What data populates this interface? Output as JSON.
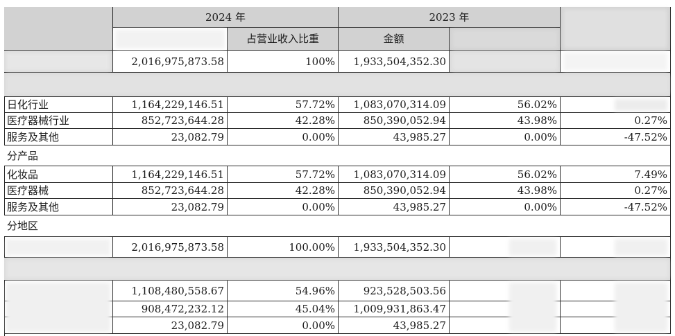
{
  "header": {
    "year_2024": "2024 年",
    "year_2023": "2023 年",
    "col_2024_amount": "",
    "col_2024_ratio": "占营业收入比重",
    "col_2023_amount": "金额",
    "col_2023_ratio": "",
    "col_change": ""
  },
  "total_row": {
    "label": "",
    "amount_2024": "2,016,975,873.58",
    "ratio_2024": "100%",
    "amount_2023": "1,933,504,352.30",
    "ratio_2023": "",
    "change": ""
  },
  "section_industry": {
    "title": "",
    "rows": [
      {
        "label": "日化行业",
        "amount_2024": "1,164,229,146.51",
        "ratio_2024": "57.72%",
        "amount_2023": "1,083,070,314.09",
        "ratio_2023": "56.02%",
        "change": ""
      },
      {
        "label": "医疗器械行业",
        "amount_2024": "852,723,644.28",
        "ratio_2024": "42.28%",
        "amount_2023": "850,390,052.94",
        "ratio_2023": "43.98%",
        "change": "0.27%"
      },
      {
        "label": "服务及其他",
        "amount_2024": "23,082.79",
        "ratio_2024": "0.00%",
        "amount_2023": "43,985.27",
        "ratio_2023": "0.00%",
        "change": "-47.52%"
      }
    ]
  },
  "section_product": {
    "title": "分产品",
    "rows": [
      {
        "label": "化妆品",
        "amount_2024": "1,164,229,146.51",
        "ratio_2024": "57.72%",
        "amount_2023": "1,083,070,314.09",
        "ratio_2023": "56.02%",
        "change": "7.49%"
      },
      {
        "label": "医疗器械",
        "amount_2024": "852,723,644.28",
        "ratio_2024": "42.28%",
        "amount_2023": "850,390,052.94",
        "ratio_2023": "43.98%",
        "change": "0.27%"
      },
      {
        "label": "服务及其他",
        "amount_2024": "23,082.79",
        "ratio_2024": "0.00%",
        "amount_2023": "43,985.27",
        "ratio_2023": "0.00%",
        "change": "-47.52%"
      }
    ]
  },
  "section_region": {
    "title": "分地区",
    "rows": [
      {
        "label": "",
        "amount_2024": "2,016,975,873.58",
        "ratio_2024": "100.00%",
        "amount_2023": "1,933,504,352.30",
        "ratio_2023": "",
        "change": ""
      }
    ]
  },
  "section_channel": {
    "title": "",
    "rows": [
      {
        "label": "",
        "amount_2024": "1,108,480,558.67",
        "ratio_2024": "54.96%",
        "amount_2023": "923,528,503.56",
        "ratio_2023": "",
        "change": ""
      },
      {
        "label": "",
        "amount_2024": "908,472,232.12",
        "ratio_2024": "45.04%",
        "amount_2023": "1,009,931,863.47",
        "ratio_2023": "",
        "change": ""
      },
      {
        "label": "",
        "amount_2024": "23,082.79",
        "ratio_2024": "0.00%",
        "amount_2023": "43,985.27",
        "ratio_2023": "",
        "change": ""
      }
    ]
  }
}
